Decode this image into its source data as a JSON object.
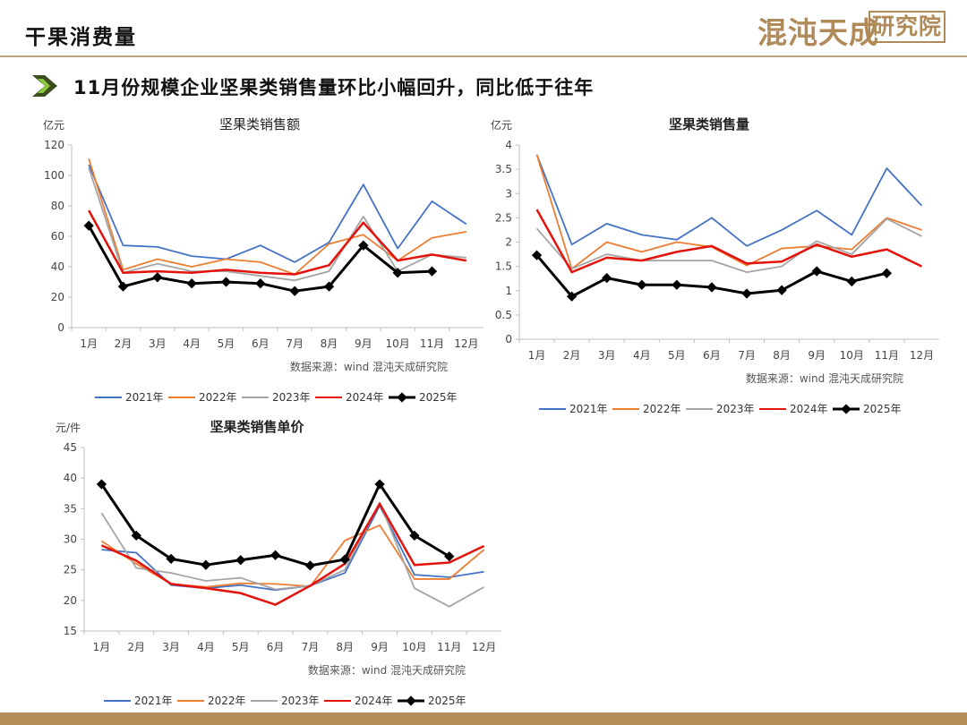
{
  "header": {
    "title": "干果消费量",
    "logo_text": "混沌天成",
    "logo_box_text": "研究院"
  },
  "subtitle": "11月份规模企业坚果类销售量环比小幅回升，同比低于往年",
  "colors": {
    "2021年": "#4472c4",
    "2022年": "#ed7d31",
    "2023年": "#a5a5a5",
    "2024年": "#e3120b",
    "2025年": "#000000"
  },
  "chart_data": [
    {
      "type": "line",
      "title": "坚果类销售额",
      "ylabel": "亿元",
      "xlabel": "",
      "ylim": [
        0,
        120
      ],
      "yticks": [
        0,
        20,
        40,
        60,
        80,
        100,
        120
      ],
      "categories": [
        "1月",
        "2月",
        "3月",
        "4月",
        "5月",
        "6月",
        "7月",
        "8月",
        "9月",
        "10月",
        "11月",
        "12月"
      ],
      "source": "数据来源：wind  混沌天成研究院",
      "legend_position": "bottom",
      "series": [
        {
          "name": "2021年",
          "values": [
            107,
            54,
            53,
            47,
            45,
            54,
            43,
            56,
            94,
            52,
            83,
            68
          ]
        },
        {
          "name": "2022年",
          "values": [
            111,
            38,
            45,
            40,
            45,
            43,
            35,
            55,
            61,
            44,
            59,
            63
          ]
        },
        {
          "name": "2023年",
          "values": [
            105,
            36,
            42,
            37,
            37,
            34,
            31,
            37,
            73,
            37,
            48,
            46
          ]
        },
        {
          "name": "2024年",
          "values": [
            77,
            36,
            37,
            36,
            38,
            36,
            35,
            41,
            69,
            44,
            48,
            44
          ]
        },
        {
          "name": "2025年",
          "values": [
            67,
            27,
            33,
            29,
            30,
            29,
            24,
            27,
            54,
            36,
            37,
            null
          ]
        }
      ]
    },
    {
      "type": "line",
      "title": "坚果类销售量",
      "ylabel": "亿元",
      "xlabel": "",
      "ylim": [
        0,
        4
      ],
      "yticks": [
        0,
        0.5,
        1,
        1.5,
        2,
        2.5,
        3,
        3.5,
        4
      ],
      "categories": [
        "1月",
        "2月",
        "3月",
        "4月",
        "5月",
        "6月",
        "7月",
        "8月",
        "9月",
        "10月",
        "11月",
        "12月"
      ],
      "source": "数据来源：wind  混沌天成研究院",
      "legend_position": "bottom",
      "series": [
        {
          "name": "2021年",
          "values": [
            3.8,
            1.95,
            2.38,
            2.15,
            2.05,
            2.5,
            1.92,
            2.25,
            2.65,
            2.15,
            3.52,
            2.75
          ]
        },
        {
          "name": "2022年",
          "values": [
            3.8,
            1.45,
            2.0,
            1.8,
            2.0,
            1.9,
            1.52,
            1.87,
            1.92,
            1.85,
            2.5,
            2.25
          ]
        },
        {
          "name": "2023年",
          "values": [
            2.28,
            1.45,
            1.75,
            1.62,
            1.62,
            1.62,
            1.38,
            1.5,
            2.02,
            1.75,
            2.48,
            2.12
          ]
        },
        {
          "name": "2024年",
          "values": [
            2.67,
            1.38,
            1.68,
            1.62,
            1.8,
            1.92,
            1.56,
            1.6,
            1.95,
            1.7,
            1.85,
            1.5
          ]
        },
        {
          "name": "2025年",
          "values": [
            1.73,
            0.88,
            1.26,
            1.12,
            1.12,
            1.07,
            0.94,
            1.01,
            1.4,
            1.19,
            1.36,
            null
          ]
        }
      ]
    },
    {
      "type": "line",
      "title": "坚果类销售单价",
      "ylabel": "元/件",
      "xlabel": "",
      "ylim": [
        15,
        45
      ],
      "yticks": [
        15,
        20,
        25,
        30,
        35,
        40,
        45
      ],
      "categories": [
        "1月",
        "2月",
        "3月",
        "4月",
        "5月",
        "6月",
        "7月",
        "8月",
        "9月",
        "10月",
        "11月",
        "12月"
      ],
      "source": "数据来源：wind  混沌天成研究院",
      "legend_position": "bottom",
      "series": [
        {
          "name": "2021年",
          "values": [
            28.3,
            27.8,
            22.5,
            22.0,
            22.5,
            21.7,
            22.4,
            24.5,
            35.5,
            24.2,
            23.8,
            24.7
          ]
        },
        {
          "name": "2022年",
          "values": [
            29.7,
            26.0,
            22.7,
            22.2,
            22.8,
            22.7,
            22.3,
            29.8,
            32.3,
            23.5,
            23.5,
            28.3
          ]
        },
        {
          "name": "2023年",
          "values": [
            34.3,
            25.3,
            24.5,
            23.2,
            23.7,
            21.8,
            22.4,
            25.0,
            36.0,
            22.0,
            19.0,
            22.2
          ]
        },
        {
          "name": "2024年",
          "values": [
            29.0,
            26.5,
            22.7,
            22.0,
            21.2,
            19.3,
            22.4,
            26.0,
            35.8,
            25.8,
            26.2,
            28.9
          ]
        },
        {
          "name": "2025年",
          "values": [
            39.0,
            30.6,
            26.8,
            25.8,
            26.6,
            27.4,
            25.7,
            26.7,
            39.0,
            30.6,
            27.2,
            null
          ]
        }
      ]
    }
  ]
}
